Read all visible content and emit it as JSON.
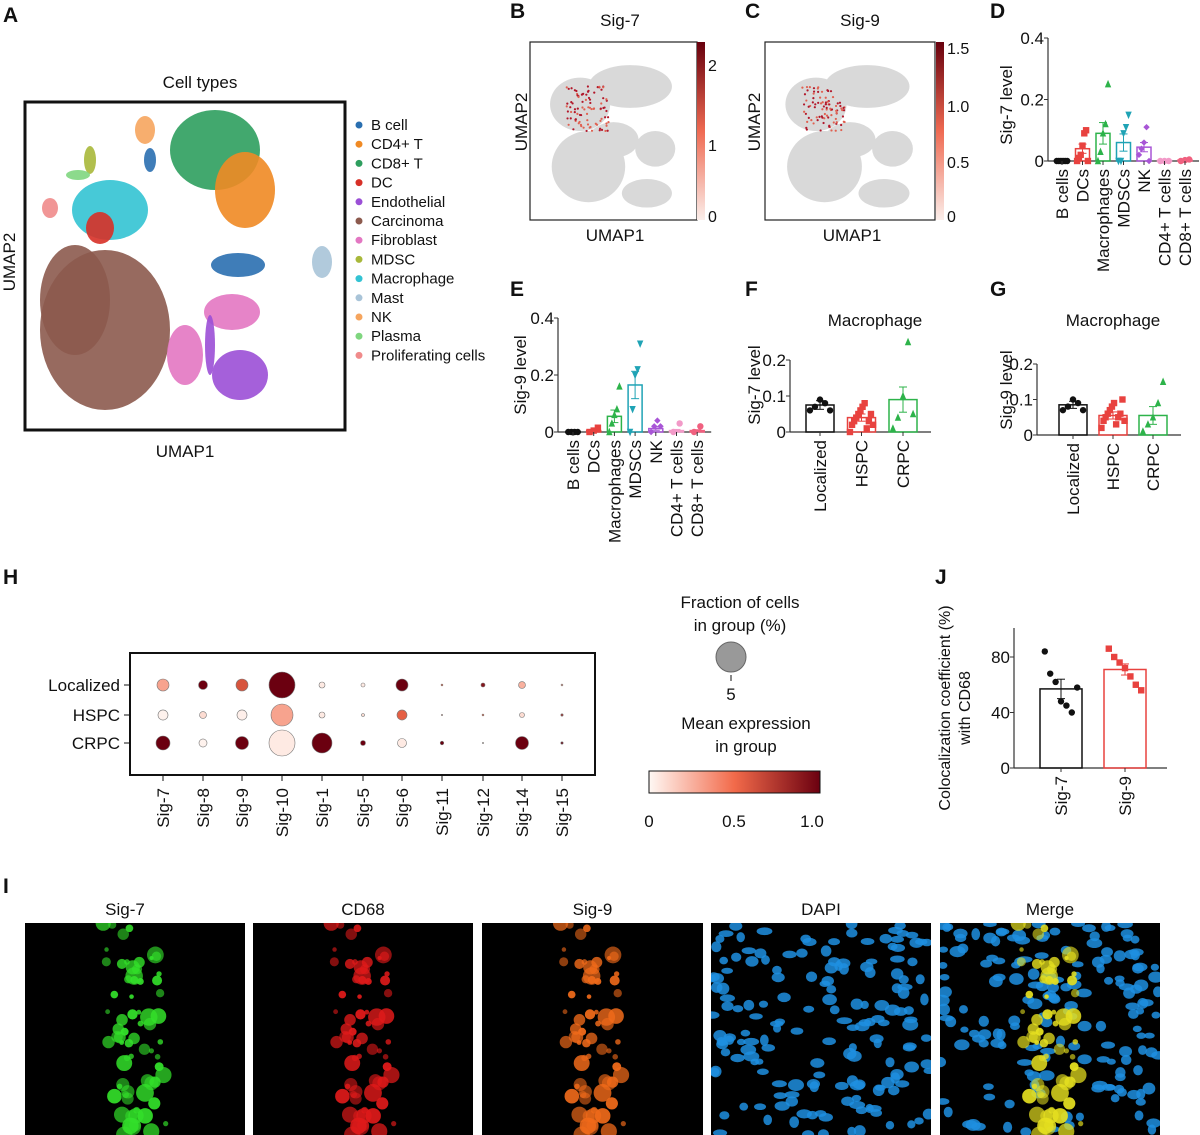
{
  "panels": {
    "A": "A",
    "B": "B",
    "C": "C",
    "D": "D",
    "E": "E",
    "F": "F",
    "G": "G",
    "H": "H",
    "I": "I",
    "J": "J"
  },
  "umap_a": {
    "title": "Cell types",
    "xlabel": "UMAP1",
    "ylabel": "UMAP2",
    "legend": [
      {
        "label": "B cell",
        "color": "#2a6fb0"
      },
      {
        "label": "CD4+ T",
        "color": "#f08a24"
      },
      {
        "label": "CD8+ T",
        "color": "#2e9e5e"
      },
      {
        "label": "DC",
        "color": "#d73027"
      },
      {
        "label": "Endothelial",
        "color": "#9b4fd6"
      },
      {
        "label": "Carcinoma",
        "color": "#8c5a4e"
      },
      {
        "label": "Fibroblast",
        "color": "#e377c2"
      },
      {
        "label": "MDSC",
        "color": "#a8b83a"
      },
      {
        "label": "Macrophage",
        "color": "#33c3d3"
      },
      {
        "label": "Mast",
        "color": "#a9c4d8"
      },
      {
        "label": "NK",
        "color": "#f6a55e"
      },
      {
        "label": "Plasma",
        "color": "#7fd67f"
      },
      {
        "label": "Proliferating cells",
        "color": "#f08b8b"
      }
    ]
  },
  "umap_b": {
    "title": "Sig-7",
    "xlabel": "UMAP1",
    "ylabel": "UMAP2",
    "colorbar_ticks": [
      "2",
      "1",
      "0"
    ],
    "max": 2.2
  },
  "umap_c": {
    "title": "Sig-9",
    "xlabel": "UMAP1",
    "ylabel": "UMAP2",
    "colorbar_ticks": [
      "1.5",
      "1.0",
      "0.5",
      "0"
    ],
    "max": 1.55
  },
  "chart_data": [
    {
      "id": "D",
      "type": "bar",
      "title": "",
      "ylabel": "Sig-7 level",
      "ylim": [
        0,
        0.4
      ],
      "yticks": [
        {
          "v": 0,
          "l": "0"
        },
        {
          "v": 0.2,
          "l": "0.2"
        },
        {
          "v": 0.4,
          "l": "0.4"
        }
      ],
      "categories": [
        "B cells",
        "DCs",
        "Macrophages",
        "MDSCs",
        "NK",
        "CD4+ T cells",
        "CD8+ T cells"
      ],
      "values": [
        0.0,
        0.04,
        0.09,
        0.06,
        0.045,
        0.002,
        0.003
      ],
      "sem": [
        0.001,
        0.015,
        0.035,
        0.028,
        0.015,
        0.001,
        0.001
      ],
      "colors": [
        "#111111",
        "#e8423f",
        "#2db34a",
        "#1fa3b5",
        "#a855d6",
        "#f29ac8",
        "#f0607f"
      ],
      "shapes": [
        "circle",
        "square",
        "triangle",
        "tri-down",
        "diamond",
        "circle",
        "circle"
      ],
      "points": [
        [
          0,
          0,
          0,
          0,
          0,
          0
        ],
        [
          0,
          0.01,
          0.02,
          0.05,
          0.09,
          0.1,
          0
        ],
        [
          0,
          0.03,
          0.09,
          0.12,
          0.25
        ],
        [
          0,
          0,
          0.09,
          0.11,
          0.15
        ],
        [
          0.02,
          0.04,
          0.06,
          0.11,
          0
        ],
        [
          0,
          0,
          0
        ],
        [
          0,
          0.003,
          0.005
        ]
      ]
    },
    {
      "id": "E",
      "type": "bar",
      "title": "",
      "ylabel": "Sig-9 level",
      "ylim": [
        0,
        0.4
      ],
      "yticks": [
        {
          "v": 0,
          "l": "0"
        },
        {
          "v": 0.2,
          "l": "0.2"
        },
        {
          "v": 0.4,
          "l": "0.4"
        }
      ],
      "categories": [
        "B cells",
        "DCs",
        "Macrophages",
        "MDSCs",
        "NK",
        "CD4+ T cells",
        "CD8+ T cells"
      ],
      "values": [
        0.0,
        0.005,
        0.055,
        0.165,
        0.012,
        0.005,
        0.005
      ],
      "sem": [
        0.001,
        0.003,
        0.022,
        0.048,
        0.006,
        0.004,
        0.003
      ],
      "colors": [
        "#111111",
        "#e8423f",
        "#2db34a",
        "#1fa3b5",
        "#a855d6",
        "#f29ac8",
        "#f0607f"
      ],
      "shapes": [
        "circle",
        "square",
        "triangle",
        "tri-down",
        "diamond",
        "circle",
        "circle"
      ],
      "points": [
        [
          0,
          0,
          0,
          0
        ],
        [
          0,
          0.005,
          0.015
        ],
        [
          0,
          0.03,
          0.06,
          0.08,
          0.16
        ],
        [
          0,
          0.08,
          0.2,
          0.22,
          0.31
        ],
        [
          0,
          0.02,
          0.04,
          0.02
        ],
        [
          0,
          0.03
        ],
        [
          0,
          0.02
        ]
      ]
    },
    {
      "id": "F",
      "type": "bar",
      "title": "Macrophage",
      "ylabel": "Sig-7 level",
      "ylim": [
        0,
        0.2
      ],
      "yticks": [
        {
          "v": 0,
          "l": "0"
        },
        {
          "v": 0.1,
          "l": "0.1"
        },
        {
          "v": 0.2,
          "l": "0.2"
        }
      ],
      "categories": [
        "Localized",
        "HSPC",
        "CRPC"
      ],
      "values": [
        0.075,
        0.04,
        0.09
      ],
      "sem": [
        0.012,
        0.01,
        0.035
      ],
      "colors": [
        "#111111",
        "#e8423f",
        "#2db34a"
      ],
      "shapes": [
        "circle",
        "square",
        "triangle"
      ],
      "points": [
        [
          0.06,
          0.07,
          0.09,
          0.08,
          0.06
        ],
        [
          0.0,
          0.02,
          0.03,
          0.04,
          0.05,
          0.06,
          0.07,
          0.08,
          0.01,
          0.03,
          0.05,
          0.02
        ],
        [
          0.01,
          0.04,
          0.1,
          0.25,
          0.05
        ]
      ]
    },
    {
      "id": "G",
      "type": "bar",
      "title": "Macrophage",
      "ylabel": "Sig-9 level",
      "ylim": [
        0,
        0.2
      ],
      "yticks": [
        {
          "v": 0,
          "l": "0"
        },
        {
          "v": 0.1,
          "l": "0.1"
        },
        {
          "v": 0.2,
          "l": "0.2"
        }
      ],
      "categories": [
        "Localized",
        "HSPC",
        "CRPC"
      ],
      "values": [
        0.085,
        0.055,
        0.055
      ],
      "sem": [
        0.01,
        0.01,
        0.025
      ],
      "colors": [
        "#111111",
        "#e8423f",
        "#2db34a"
      ],
      "shapes": [
        "circle",
        "square",
        "triangle"
      ],
      "points": [
        [
          0.07,
          0.08,
          0.1,
          0.09,
          0.07
        ],
        [
          0.02,
          0.04,
          0.05,
          0.06,
          0.07,
          0.08,
          0.09,
          0.03,
          0.05,
          0.06,
          0.1,
          0.04
        ],
        [
          0.01,
          0.03,
          0.05,
          0.09,
          0.15
        ]
      ]
    },
    {
      "id": "J",
      "type": "bar",
      "title": "",
      "ylabel": "Colocalization coefficient (%) with CD68",
      "ylim": [
        0,
        80
      ],
      "yticks": [
        {
          "v": 0,
          "l": "0"
        },
        {
          "v": 40,
          "l": "40"
        },
        {
          "v": 80,
          "l": "80"
        }
      ],
      "categories": [
        "Sig-7",
        "Sig-9"
      ],
      "values": [
        57,
        71
      ],
      "sem": [
        7,
        4
      ],
      "colors": [
        "#111111",
        "#e8423f"
      ],
      "shapes": [
        "circle",
        "square"
      ],
      "points": [
        [
          84,
          68,
          62,
          48,
          45,
          40,
          58
        ],
        [
          86,
          80,
          76,
          72,
          66,
          60,
          56
        ]
      ]
    },
    {
      "id": "H",
      "type": "scatter",
      "subtype": "dotplot",
      "rows": [
        "Localized",
        "HSPC",
        "CRPC"
      ],
      "columns": [
        "Sig-7",
        "Sig-8",
        "Sig-9",
        "Sig-10",
        "Sig-1",
        "Sig-5",
        "Sig-6",
        "Sig-11",
        "Sig-12",
        "Sig-14",
        "Sig-15"
      ],
      "fraction_pct": [
        [
          0.8,
          0.45,
          0.8,
          3.76,
          0.2,
          0.09,
          0.8,
          0.02,
          0.09,
          0.27,
          0.02
        ],
        [
          0.56,
          0.27,
          0.56,
          2.69,
          0.2,
          0.05,
          0.56,
          0.01,
          0.02,
          0.14,
          0.03
        ],
        [
          1.09,
          0.36,
          0.94,
          3.76,
          2.22,
          0.14,
          0.45,
          0.07,
          0.01,
          0.94,
          0.03
        ]
      ],
      "mean_expression": [
        [
          0.3,
          1.0,
          0.6,
          1.0,
          0.05,
          0.05,
          1.0,
          0.5,
          0.9,
          0.25,
          0.3
        ],
        [
          0.02,
          0.1,
          0.03,
          0.3,
          0.05,
          0.1,
          0.55,
          0.3,
          0.5,
          0.1,
          0.8
        ],
        [
          1.0,
          0.02,
          1.0,
          0.05,
          1.0,
          1.0,
          0.05,
          1.0,
          0.1,
          1.0,
          1.0
        ]
      ],
      "size_legend": {
        "title1": "Fraction of cells",
        "title2": "in group (%)",
        "value": 5,
        "label": "5"
      },
      "color_legend": {
        "title1": "Mean expression",
        "title2": "in group",
        "ticks": [
          "0",
          "0.5",
          "1.0"
        ]
      }
    }
  ],
  "images": [
    {
      "title": "Sig-7",
      "channel": "#33e02a"
    },
    {
      "title": "CD68",
      "channel": "#e01a1a"
    },
    {
      "title": "Sig-9",
      "channel": "#f06a1a"
    },
    {
      "title": "DAPI",
      "channel": "#1e8fe0"
    },
    {
      "title": "Merge",
      "channel": "#e6e020"
    }
  ]
}
